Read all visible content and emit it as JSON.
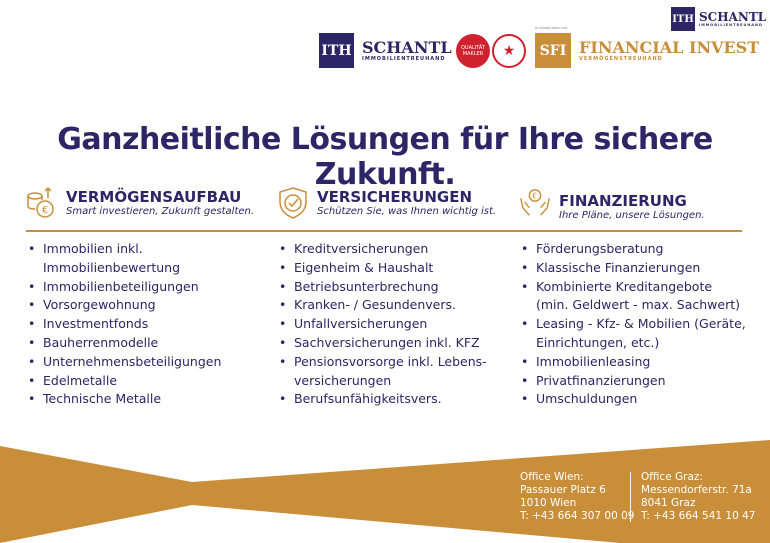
{
  "header": {
    "small_logo": {
      "mark": "ITH",
      "name": "SCHANTL",
      "sub": "IMMOBILIENTREUHAND"
    },
    "main_logo": {
      "mark": "ITH",
      "name": "SCHANTL",
      "sub": "IMMOBILIENTREUHAND"
    },
    "badges": [
      {
        "label": "QUALITÄT MAKLER"
      },
      {
        "label": "★"
      }
    ],
    "cooperation": "In Kooperation mit",
    "sfi_logo": {
      "mark": "SFI",
      "name": "FINANCIAL INVEST",
      "sub": "VERMÖGENSTREUHAND"
    }
  },
  "headline": "Ganzheitliche Lösungen für Ihre sichere Zukunft.",
  "columns": [
    {
      "title": "VERMÖGENSAUFBAU",
      "tagline": "Smart investieren, Zukunft gestalten.",
      "icon": "coins-growth-icon",
      "items": [
        "Immobilien inkl. Immobilienbewertung",
        "Immobilienbeteiligungen",
        "Vorsorgewohnung",
        "Investmentfonds",
        "Bauherrenmodelle",
        "Unternehmensbeteiligungen",
        "Edelmetalle",
        "Technische Metalle"
      ]
    },
    {
      "title": "VERSICHERUNGEN",
      "tagline": "Schützen Sie, was Ihnen wichtig ist.",
      "icon": "shield-check-icon",
      "items": [
        "Kreditversicherungen",
        "Eigenheim & Haushalt",
        "Betriebsunterbrechung",
        "Kranken- / Gesundenvers.",
        "Unfallversicherungen",
        "Sachversicherungen inkl. KFZ",
        "Pensionsvorsorge inkl. Lebens-versicherungen",
        "Berufsunfähigkeitsvers."
      ]
    },
    {
      "title": "FINANZIERUNG",
      "tagline": "Ihre Pläne, unsere Lösungen.",
      "icon": "hands-coin-icon",
      "items": [
        "Förderungsberatung",
        "Klassische Finanzierungen",
        "Kombinierte Kreditangebote (min. Geldwert - max. Sachwert)",
        "Leasing - Kfz- & Mobilien (Geräte, Einrichtungen, etc.)",
        "Immobilienleasing",
        "Privatfinanzierungen",
        "Umschuldungen"
      ]
    }
  ],
  "offices": [
    {
      "title": "Office Wien:",
      "street": "Passauer Platz 6",
      "city": "1010 Wien",
      "phone": "T: +43 664 307 00 09"
    },
    {
      "title": "Office Graz:",
      "street": "Messendorferstr. 71a",
      "city": "8041 Graz",
      "phone": "T: +43 664 541 10 47"
    }
  ],
  "colors": {
    "navy": "#2d2565",
    "gold": "#c98e3a"
  }
}
